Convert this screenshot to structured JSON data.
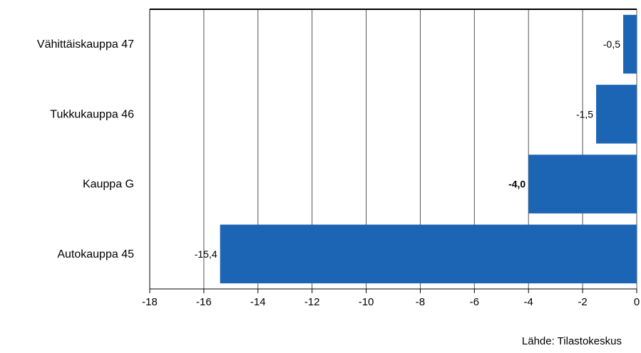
{
  "chart_data": {
    "type": "bar",
    "orientation": "horizontal",
    "categories": [
      "Vähittäiskauppa 47",
      "Tukkukauppa  46",
      "Kauppa G",
      "Autokauppa 45"
    ],
    "values": [
      -0.5,
      -1.5,
      -4.0,
      -15.4
    ],
    "value_labels": [
      "-0,5",
      "-1,5",
      "-4,0",
      "-15,4"
    ],
    "bold_labels": [
      false,
      false,
      true,
      false
    ],
    "xlim": [
      -18,
      0
    ],
    "xticks": [
      -18,
      -16,
      -14,
      -12,
      -10,
      -8,
      -6,
      -4,
      -2,
      0
    ],
    "xtick_labels": [
      "-18",
      "-16",
      "-14",
      "-12",
      "-10",
      "-8",
      "-6",
      "-4",
      "-2",
      "0"
    ],
    "grid": "vertical",
    "bar_color": "#1c64b4",
    "title": "",
    "xlabel": "",
    "ylabel": ""
  },
  "source": "Lähde: Tilastokeskus"
}
